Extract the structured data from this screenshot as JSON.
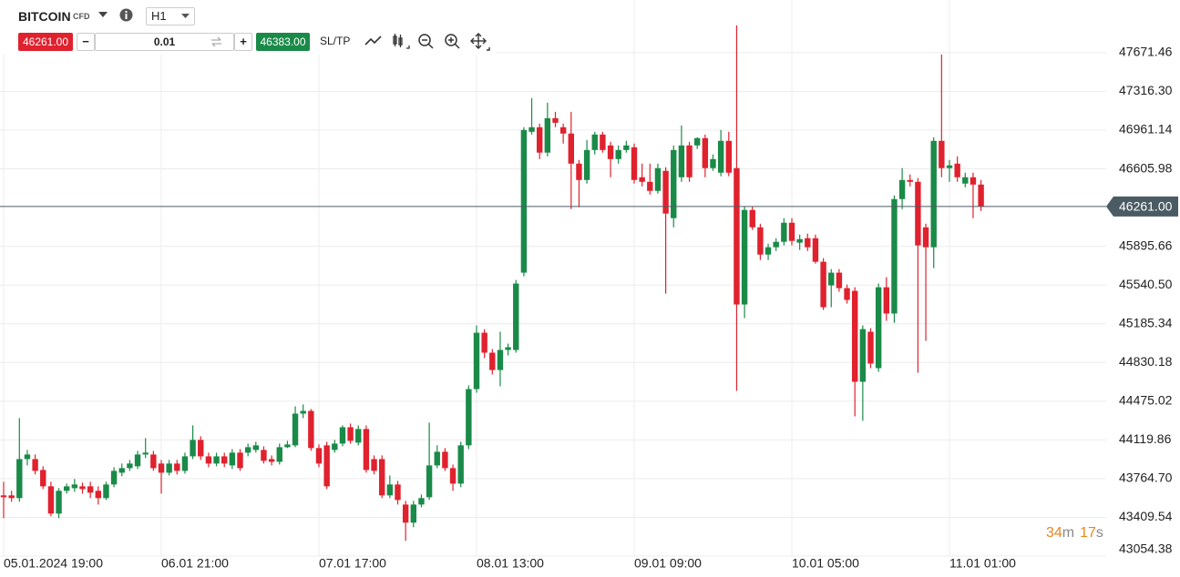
{
  "toolbar": {
    "symbol": "BITCOIN",
    "symbol_type": "CFD",
    "timeframe": "H1",
    "sell_price": "46261.00",
    "volume": "0.01",
    "buy_price": "46383.00",
    "sl_tp": "SL/TP"
  },
  "timer": {
    "minutes_value": "34",
    "minutes_unit": "m",
    "seconds_value": "17",
    "seconds_unit": "s"
  },
  "chart_data": {
    "type": "candlestick",
    "up_color": "#1a8a48",
    "down_color": "#e0212e",
    "grid": true,
    "ylim": [
      43054.38,
      48155.0
    ],
    "yticks": [
      47671.46,
      {
        "value": 47316.3,
        "label": "47316.30"
      },
      46961.14,
      46605.98,
      45895.66,
      {
        "value": 45540.5,
        "label": "45540.50"
      },
      45185.34,
      44830.18,
      44475.02,
      44119.86,
      {
        "value": 43764.7,
        "label": "43764.70"
      },
      43409.54,
      43054.38
    ],
    "current_price": {
      "value": 46261,
      "label": "46261.00"
    },
    "categories": [
      "05.01.2024 19:00",
      null,
      null,
      null,
      null,
      null,
      null,
      null,
      null,
      null,
      null,
      null,
      null,
      null,
      null,
      null,
      null,
      null,
      null,
      null,
      "06.01 21:00",
      null,
      null,
      null,
      null,
      null,
      null,
      null,
      null,
      null,
      null,
      null,
      null,
      null,
      null,
      null,
      null,
      null,
      null,
      null,
      "07.01 17:00",
      null,
      null,
      null,
      null,
      null,
      null,
      null,
      null,
      null,
      null,
      null,
      null,
      null,
      null,
      null,
      null,
      null,
      null,
      null,
      "08.01 13:00",
      null,
      null,
      null,
      null,
      null,
      null,
      null,
      null,
      null,
      null,
      null,
      null,
      null,
      null,
      null,
      null,
      null,
      null,
      null,
      "09.01 09:00",
      null,
      null,
      null,
      null,
      null,
      null,
      null,
      null,
      null,
      null,
      null,
      null,
      null,
      null,
      null,
      null,
      null,
      null,
      null,
      "10.01 05:00",
      null,
      null,
      null,
      null,
      null,
      null,
      null,
      null,
      null,
      null,
      null,
      null,
      null,
      null,
      null,
      null,
      null,
      null,
      null,
      "11.01 01:00",
      null,
      null,
      null,
      null
    ],
    "open": [
      43611,
      43611,
      43586,
      43944,
      43944,
      43844,
      43694,
      43444,
      43653,
      43677,
      43694,
      43694,
      43653,
      43586,
      43711,
      43819,
      43861,
      43878,
      43986,
      43986,
      43903,
      43819,
      43903,
      43836,
      43969,
      44120,
      43969,
      43903,
      43969,
      43886,
      44003,
      44003,
      44028,
      44028,
      43944,
      43919,
      44053,
      44070,
      44361,
      44386,
      44045,
      44070,
      44028,
      44086,
      44236,
      44095,
      44220,
      43944,
      43944,
      43611,
      43711,
      43527,
      43361,
      43527,
      43594,
      43886,
      44011,
      43861,
      43719,
      44070,
      44586,
      45103,
      44920,
      44761,
      44945,
      44945,
      45654,
      46946,
      46988,
      46755,
      47071,
      46988,
      46930,
      46654,
      46504,
      46779,
      46921,
      46821,
      46696,
      46779,
      46804,
      46529,
      46487,
      46404,
      46588,
      46154,
      46529,
      46821,
      46821,
      46888,
      46613,
      46571,
      46863,
      46613,
      45362,
      46229,
      46070,
      45820,
      45887,
      45937,
      46112,
      45929,
      45970,
      45970,
      45754,
      45537,
      45654,
      45512,
      45487,
      44653,
      45112,
      44778,
      45520,
      45279,
      46329,
      46504,
      46487,
      46070,
      45887,
      46863,
      46613,
      46654,
      46471,
      46529,
      46462
    ],
    "high": [
      43736,
      43653,
      44320,
      44028,
      43986,
      43878,
      43736,
      43678,
      43719,
      43761,
      43728,
      43736,
      43694,
      43736,
      43869,
      43903,
      43936,
      44019,
      44136,
      44019,
      43936,
      43936,
      43936,
      44003,
      44253,
      44153,
      44003,
      44003,
      44003,
      44036,
      44036,
      44086,
      44103,
      44061,
      43978,
      44086,
      44111,
      44428,
      44445,
      44403,
      44078,
      44103,
      44120,
      44253,
      44270,
      44253,
      44253,
      43978,
      43978,
      43794,
      43744,
      43561,
      43561,
      43619,
      44278,
      44070,
      44045,
      43894,
      44103,
      44620,
      45170,
      45136,
      44953,
      45112,
      45003,
      45587,
      46988,
      47255,
      47021,
      47213,
      47129,
      47021,
      47129,
      46688,
      46871,
      46946,
      46946,
      46854,
      46821,
      46863,
      46838,
      46654,
      46654,
      46654,
      46621,
      46821,
      47004,
      46854,
      46896,
      46921,
      46738,
      46963,
      46946,
      47922,
      46262,
      46262,
      46103,
      45920,
      45970,
      46154,
      46154,
      46003,
      46012,
      46003,
      45787,
      45687,
      45687,
      45545,
      45520,
      45170,
      45145,
      45554,
      45612,
      46362,
      46613,
      46554,
      46521,
      46103,
      46896,
      47655,
      46688,
      46721,
      46571,
      46571,
      46504
    ],
    "low": [
      43402,
      43553,
      43553,
      43886,
      43803,
      43669,
      43419,
      43402,
      43627,
      43644,
      43627,
      43586,
      43527,
      43569,
      43686,
      43786,
      43836,
      43853,
      43953,
      43836,
      43627,
      43794,
      43803,
      43811,
      43944,
      43936,
      43869,
      43878,
      43869,
      43853,
      43836,
      43969,
      44003,
      43903,
      43886,
      43894,
      44045,
      44053,
      44320,
      44020,
      43869,
      43669,
      44003,
      44061,
      44086,
      44070,
      43819,
      43803,
      43586,
      43586,
      43527,
      43194,
      43319,
      43502,
      43569,
      43861,
      43836,
      43653,
      43686,
      44036,
      44553,
      44870,
      44720,
      44611,
      44895,
      44920,
      45620,
      46921,
      46696,
      46721,
      46988,
      46838,
      46237,
      46254,
      46471,
      46738,
      46755,
      46529,
      46654,
      46755,
      46471,
      46446,
      46370,
      46379,
      45462,
      46070,
      46487,
      46487,
      46788,
      46529,
      46588,
      46538,
      46538,
      44570,
      45237,
      46045,
      45770,
      45770,
      45853,
      45904,
      45904,
      45862,
      45853,
      45737,
      45312,
      45337,
      45479,
      45370,
      44336,
      44295,
      44778,
      44745,
      45212,
      45195,
      46237,
      46446,
      44736,
      45028,
      45695,
      46529,
      46487,
      46487,
      46437,
      46154,
      46220
    ],
    "close": [
      43594,
      43586,
      43944,
      43986,
      43836,
      43694,
      43444,
      43653,
      43694,
      43711,
      43669,
      43636,
      43586,
      43711,
      43836,
      43861,
      43903,
      43986,
      44003,
      43861,
      43819,
      43903,
      43836,
      43969,
      44120,
      43969,
      43903,
      43969,
      43903,
      44003,
      43861,
      44053,
      44070,
      43928,
      43919,
      44053,
      44078,
      44361,
      44386,
      44045,
      43903,
      43694,
      44086,
      44236,
      44111,
      44220,
      43844,
      43836,
      43611,
      43711,
      43569,
      43361,
      43527,
      43586,
      43886,
      44011,
      43861,
      43719,
      44070,
      44586,
      45103,
      44920,
      44761,
      44945,
      44970,
      45554,
      46963,
      46988,
      46755,
      47071,
      47029,
      46930,
      46654,
      46504,
      46779,
      46921,
      46779,
      46696,
      46779,
      46821,
      46504,
      46487,
      46404,
      46613,
      46196,
      46779,
      46821,
      46529,
      46888,
      46613,
      46696,
      46863,
      46571,
      45362,
      46229,
      46070,
      45820,
      45887,
      45937,
      46112,
      45945,
      45962,
      45887,
      45754,
      45337,
      45654,
      45512,
      45404,
      44653,
      45136,
      44820,
      45520,
      45279,
      46329,
      46504,
      46487,
      45904,
      45887,
      46863,
      46613,
      46638,
      46529,
      46529,
      46462,
      46261
    ]
  }
}
